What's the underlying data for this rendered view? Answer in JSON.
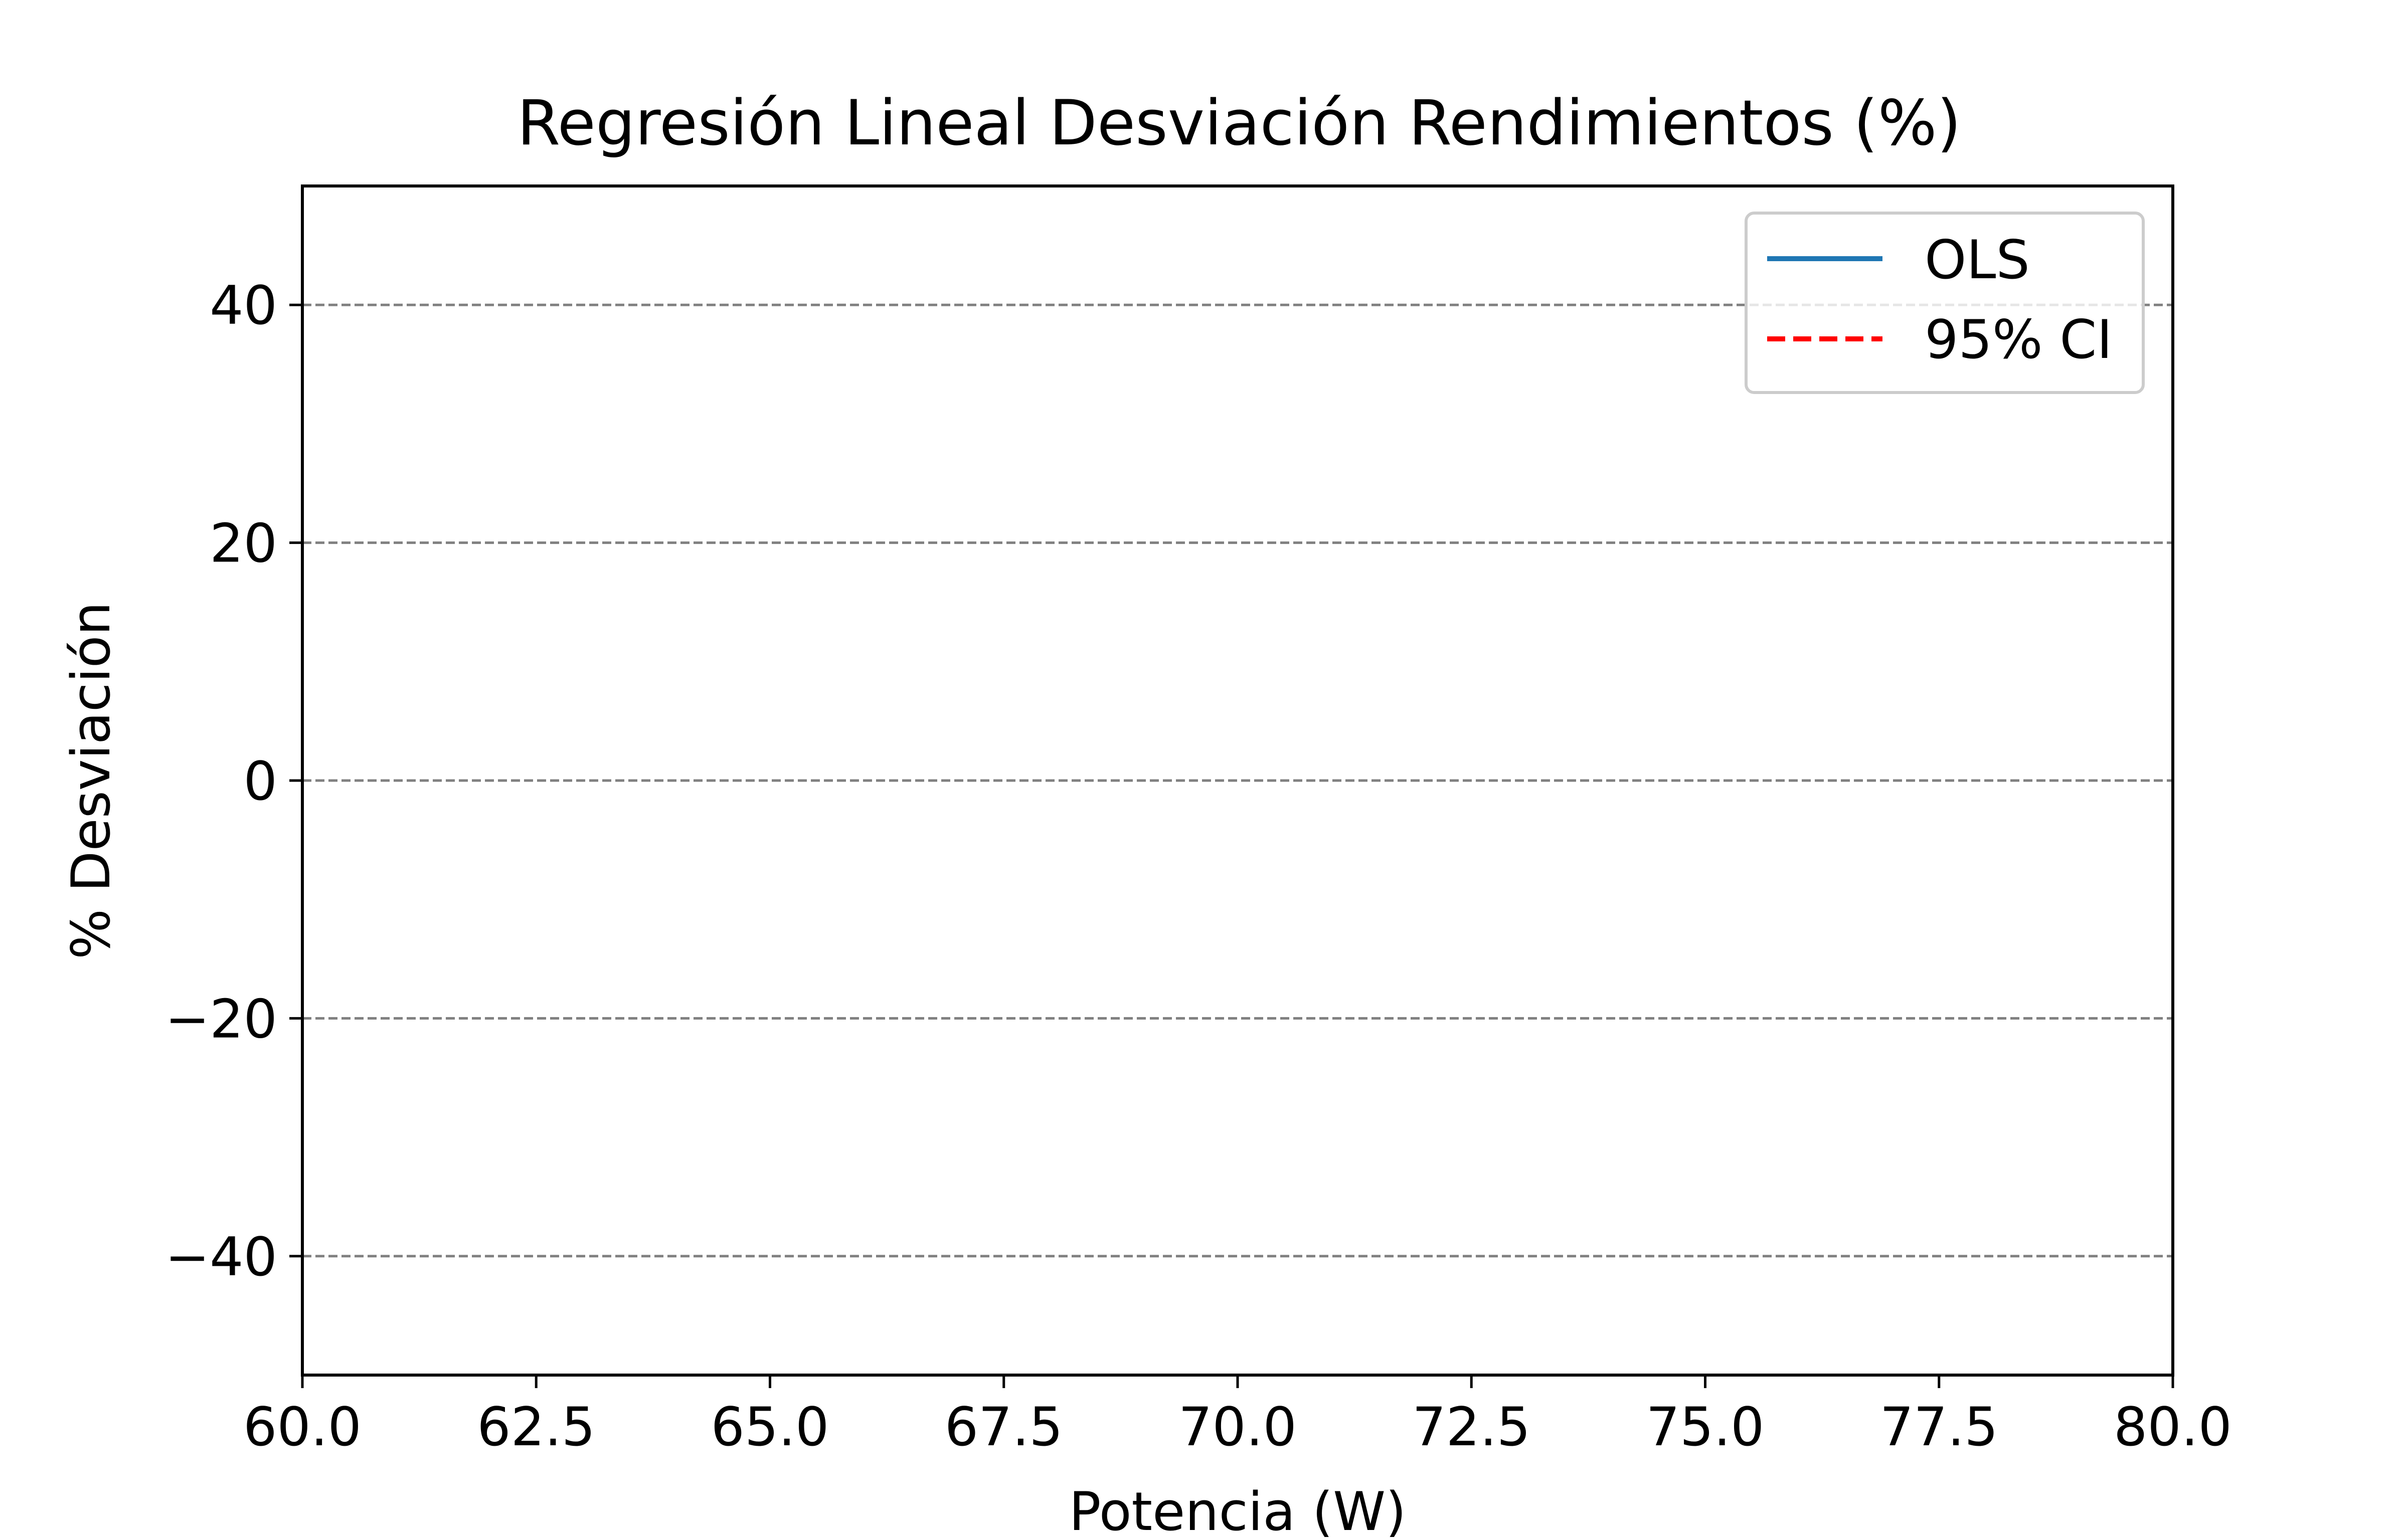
{
  "chart_data": {
    "type": "line",
    "title": "Regresión Lineal Desviación Rendimientos (%)",
    "xlabel": "Potencia (W)",
    "ylabel": "% Desviación",
    "xlim": [
      60.0,
      80.0
    ],
    "ylim": [
      -50,
      50
    ],
    "x_ticks": [
      60.0,
      62.5,
      65.0,
      67.5,
      70.0,
      72.5,
      75.0,
      77.5,
      80.0
    ],
    "x_tick_labels": [
      "60.0",
      "62.5",
      "65.0",
      "67.5",
      "70.0",
      "72.5",
      "75.0",
      "77.5",
      "80.0"
    ],
    "y_ticks": [
      -40,
      -20,
      0,
      20,
      40
    ],
    "y_tick_labels": [
      "−40",
      "−20",
      "0",
      "20",
      "40"
    ],
    "grid": "horizontal dashed",
    "legend_position": "top-right",
    "series": [
      {
        "name": "OLS",
        "style": "solid",
        "color": "#1f77b4",
        "x": [],
        "y": []
      },
      {
        "name": "95% CI",
        "style": "dashed",
        "color": "#ff0000",
        "x": [],
        "y": []
      }
    ]
  }
}
